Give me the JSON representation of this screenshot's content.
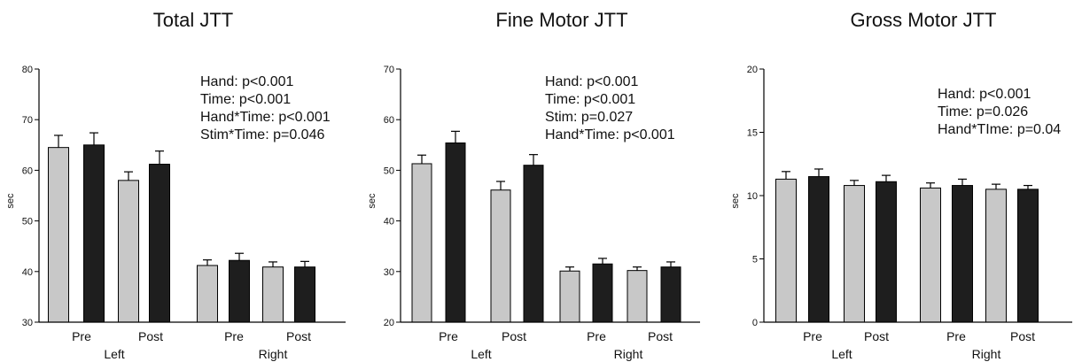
{
  "colors": {
    "pre_series": "#c8c8c8",
    "post_series": "#1e1e1e",
    "axis": "#000000"
  },
  "chart_data": [
    {
      "type": "bar",
      "title": "Total JTT",
      "ylabel": "sec",
      "ylim": [
        30,
        80
      ],
      "yticks": [
        30,
        40,
        50,
        60,
        70,
        80
      ],
      "time_labels": [
        "Pre",
        "Post",
        "Pre",
        "Post"
      ],
      "hand_labels": [
        "Left",
        "Right"
      ],
      "bars": [
        {
          "hand": "Left",
          "time": "Pre",
          "series": 0,
          "value": 64.5,
          "error": 2.4
        },
        {
          "hand": "Left",
          "time": "Pre",
          "series": 1,
          "value": 65.0,
          "error": 2.4
        },
        {
          "hand": "Left",
          "time": "Post",
          "series": 0,
          "value": 58.0,
          "error": 1.7
        },
        {
          "hand": "Left",
          "time": "Post",
          "series": 1,
          "value": 61.2,
          "error": 2.6
        },
        {
          "hand": "Right",
          "time": "Pre",
          "series": 0,
          "value": 41.2,
          "error": 1.1
        },
        {
          "hand": "Right",
          "time": "Pre",
          "series": 1,
          "value": 42.2,
          "error": 1.4
        },
        {
          "hand": "Right",
          "time": "Post",
          "series": 0,
          "value": 40.9,
          "error": 1.0
        },
        {
          "hand": "Right",
          "time": "Post",
          "series": 1,
          "value": 40.9,
          "error": 1.1
        }
      ],
      "annotations": [
        "Hand: p<0.001",
        "Time: p<0.001",
        "Hand*Time: p<0.001",
        "Stim*Time: p=0.046"
      ]
    },
    {
      "type": "bar",
      "title": "Fine Motor JTT",
      "ylabel": "sec",
      "ylim": [
        20,
        70
      ],
      "yticks": [
        20,
        30,
        40,
        50,
        60,
        70
      ],
      "time_labels": [
        "Pre",
        "Post",
        "Pre",
        "Post"
      ],
      "hand_labels": [
        "Left",
        "Right"
      ],
      "bars": [
        {
          "hand": "Left",
          "time": "Pre",
          "series": 0,
          "value": 51.3,
          "error": 1.7
        },
        {
          "hand": "Left",
          "time": "Pre",
          "series": 1,
          "value": 55.4,
          "error": 2.3
        },
        {
          "hand": "Left",
          "time": "Post",
          "series": 0,
          "value": 46.1,
          "error": 1.7
        },
        {
          "hand": "Left",
          "time": "Post",
          "series": 1,
          "value": 51.0,
          "error": 2.1
        },
        {
          "hand": "Right",
          "time": "Pre",
          "series": 0,
          "value": 30.1,
          "error": 0.8
        },
        {
          "hand": "Right",
          "time": "Pre",
          "series": 1,
          "value": 31.5,
          "error": 1.1
        },
        {
          "hand": "Right",
          "time": "Post",
          "series": 0,
          "value": 30.2,
          "error": 0.7
        },
        {
          "hand": "Right",
          "time": "Post",
          "series": 1,
          "value": 30.9,
          "error": 1.0
        }
      ],
      "annotations": [
        "Hand: p<0.001",
        "Time: p<0.001",
        "Stim: p=0.027",
        "Hand*Time: p<0.001"
      ]
    },
    {
      "type": "bar",
      "title": "Gross Motor JTT",
      "ylabel": "sec",
      "ylim": [
        0,
        20
      ],
      "yticks": [
        0,
        5,
        10,
        15,
        20
      ],
      "time_labels": [
        "Pre",
        "Post",
        "Pre",
        "Post"
      ],
      "hand_labels": [
        "Left",
        "Right"
      ],
      "bars": [
        {
          "hand": "Left",
          "time": "Pre",
          "series": 0,
          "value": 11.3,
          "error": 0.6
        },
        {
          "hand": "Left",
          "time": "Pre",
          "series": 1,
          "value": 11.5,
          "error": 0.6
        },
        {
          "hand": "Left",
          "time": "Post",
          "series": 0,
          "value": 10.8,
          "error": 0.4
        },
        {
          "hand": "Left",
          "time": "Post",
          "series": 1,
          "value": 11.1,
          "error": 0.5
        },
        {
          "hand": "Right",
          "time": "Pre",
          "series": 0,
          "value": 10.6,
          "error": 0.4
        },
        {
          "hand": "Right",
          "time": "Pre",
          "series": 1,
          "value": 10.8,
          "error": 0.5
        },
        {
          "hand": "Right",
          "time": "Post",
          "series": 0,
          "value": 10.5,
          "error": 0.4
        },
        {
          "hand": "Right",
          "time": "Post",
          "series": 1,
          "value": 10.5,
          "error": 0.3
        }
      ],
      "annotations": [
        "Hand: p<0.001",
        "Time: p=0.026",
        "Hand*TIme: p=0.04"
      ]
    }
  ]
}
